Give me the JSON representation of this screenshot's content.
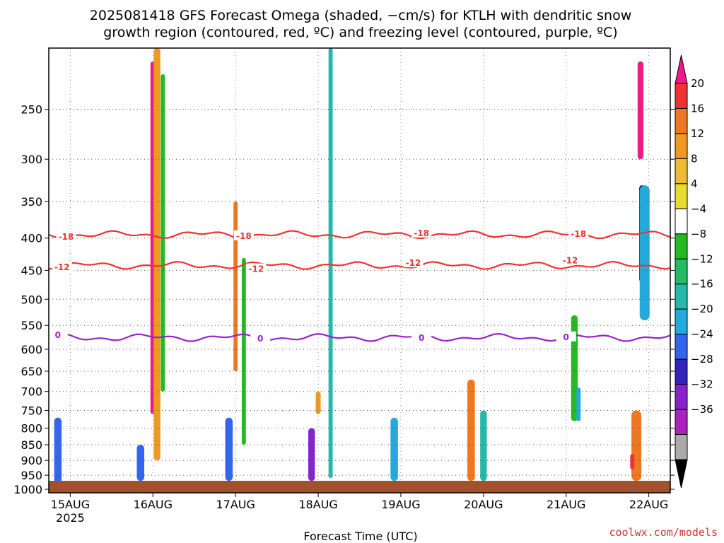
{
  "title_line1": "2025081418 GFS Forecast Omega (shaded, −cm/s) for KTLH with dendritic snow",
  "title_line2": "growth region (contoured, red, ºC) and freezing level (contoured, purple, ºC)",
  "credit": "coolwx.com/models",
  "chart_data": {
    "type": "heatmap",
    "title": "2025081418 GFS Forecast Omega (shaded, −cm/s) for KTLH with dendritic snow growth region (contoured, red, ºC) and freezing level (contoured, purple, ºC)",
    "xlabel": "Forecast Time (UTC)",
    "ylabel": "",
    "x_ticks": [
      {
        "label": "15AUG",
        "sublabel": "2025",
        "day": 0
      },
      {
        "label": "16AUG",
        "day": 1
      },
      {
        "label": "17AUG",
        "day": 2
      },
      {
        "label": "18AUG",
        "day": 3
      },
      {
        "label": "19AUG",
        "day": 4
      },
      {
        "label": "20AUG",
        "day": 5
      },
      {
        "label": "21AUG",
        "day": 6
      },
      {
        "label": "22AUG",
        "day": 7
      }
    ],
    "xlim_days": [
      -0.26,
      7.26
    ],
    "y_ticks": [
      250,
      300,
      350,
      400,
      450,
      500,
      550,
      600,
      650,
      700,
      750,
      800,
      850,
      900,
      950,
      1000
    ],
    "y_axis": "pressure (hPa), log scale, decreasing upward",
    "ylim": [
      1013,
      200
    ],
    "ground_fill_color": "#a0522d",
    "colorbar": {
      "labels": [
        "20",
        "16",
        "12",
        "8",
        "4",
        "−4",
        "−8",
        "−12",
        "−16",
        "−20",
        "−24",
        "−28",
        "−32",
        "−36"
      ],
      "colors": [
        "#ee1a8a",
        "#ee3333",
        "#ee7722",
        "#ee9922",
        "#eebb33",
        "#e8dc33",
        "#ffffff",
        "#22bb22",
        "#22bb66",
        "#22bbaa",
        "#22aadd",
        "#3366ee",
        "#3322bb",
        "#8822cc",
        "#aa22bb",
        "#aaaaaa",
        "#000000"
      ]
    },
    "contours": [
      {
        "label": "-18",
        "color": "#ee3333",
        "approx_pressure": 395
      },
      {
        "label": "-12",
        "color": "#ee3333",
        "approx_pressure": 442
      },
      {
        "label": "0",
        "color": "#9922cc",
        "approx_pressure": 575
      }
    ],
    "contour_labels": [
      {
        "text": "-18",
        "day": -0.05,
        "p": 398
      },
      {
        "text": "-18",
        "day": 2.1,
        "p": 397
      },
      {
        "text": "-18",
        "day": 4.25,
        "p": 393
      },
      {
        "text": "-18",
        "day": 6.15,
        "p": 394
      },
      {
        "text": "-12",
        "day": -0.1,
        "p": 445
      },
      {
        "text": "-12",
        "day": 2.25,
        "p": 448
      },
      {
        "text": "-12",
        "day": 4.15,
        "p": 438
      },
      {
        "text": "-12",
        "day": 6.05,
        "p": 434
      },
      {
        "text": "0",
        "day": -0.15,
        "p": 570
      },
      {
        "text": "0",
        "day": 2.3,
        "p": 577
      },
      {
        "text": "0",
        "day": 4.25,
        "p": 576
      },
      {
        "text": "0",
        "day": 6.0,
        "p": 574
      }
    ],
    "omega_blobs": [
      {
        "day": 1.0,
        "p_top": 210,
        "p_bot": 760,
        "width": 0.06,
        "level": 20,
        "color": "#ee1a8a"
      },
      {
        "day": 1.05,
        "p_top": 200,
        "p_bot": 900,
        "width": 0.08,
        "level": 12,
        "color": "#ee9922"
      },
      {
        "day": 1.12,
        "p_top": 220,
        "p_bot": 700,
        "width": 0.05,
        "level": -8,
        "color": "#22bb22"
      },
      {
        "day": 2.0,
        "p_top": 350,
        "p_bot": 650,
        "width": 0.05,
        "level": 12,
        "color": "#ee7722"
      },
      {
        "day": 2.1,
        "p_top": 430,
        "p_bot": 850,
        "width": 0.05,
        "level": -8,
        "color": "#22bb22"
      },
      {
        "day": 3.15,
        "p_top": 200,
        "p_bot": 960,
        "width": 0.05,
        "level": -12,
        "color": "#22bbaa"
      },
      {
        "day": 3.0,
        "p_top": 700,
        "p_bot": 760,
        "width": 0.06,
        "level": 8,
        "color": "#ee9922"
      },
      {
        "day": -0.15,
        "p_top": 770,
        "p_bot": 980,
        "width": 0.09,
        "level": -20,
        "color": "#3366ee"
      },
      {
        "day": 0.85,
        "p_top": 850,
        "p_bot": 970,
        "width": 0.09,
        "level": -20,
        "color": "#3366ee"
      },
      {
        "day": 1.92,
        "p_top": 770,
        "p_bot": 970,
        "width": 0.09,
        "level": -20,
        "color": "#3366ee"
      },
      {
        "day": 2.92,
        "p_top": 800,
        "p_bot": 970,
        "width": 0.08,
        "level": -28,
        "color": "#8822cc"
      },
      {
        "day": 3.92,
        "p_top": 770,
        "p_bot": 970,
        "width": 0.09,
        "level": -16,
        "color": "#22aadd"
      },
      {
        "day": 4.85,
        "p_top": 670,
        "p_bot": 970,
        "width": 0.09,
        "level": 12,
        "color": "#ee7722"
      },
      {
        "day": 5.0,
        "p_top": 750,
        "p_bot": 970,
        "width": 0.08,
        "level": -12,
        "color": "#22bbaa"
      },
      {
        "day": 6.1,
        "p_top": 530,
        "p_bot": 780,
        "width": 0.08,
        "level": -8,
        "color": "#22bb22"
      },
      {
        "day": 6.15,
        "p_top": 690,
        "p_bot": 780,
        "width": 0.05,
        "level": -16,
        "color": "#22aadd"
      },
      {
        "day": 6.9,
        "p_top": 210,
        "p_bot": 300,
        "width": 0.07,
        "level": 20,
        "color": "#ee1a8a"
      },
      {
        "day": 6.92,
        "p_top": 330,
        "p_bot": 470,
        "width": 0.07,
        "level": -36,
        "color": "#000000"
      },
      {
        "day": 6.95,
        "p_top": 330,
        "p_bot": 540,
        "width": 0.12,
        "level": -16,
        "color": "#22aadd"
      },
      {
        "day": 6.85,
        "p_top": 750,
        "p_bot": 970,
        "width": 0.12,
        "level": 12,
        "color": "#ee7722"
      },
      {
        "day": 6.8,
        "p_top": 880,
        "p_bot": 930,
        "width": 0.05,
        "level": 16,
        "color": "#ee3333"
      }
    ]
  }
}
